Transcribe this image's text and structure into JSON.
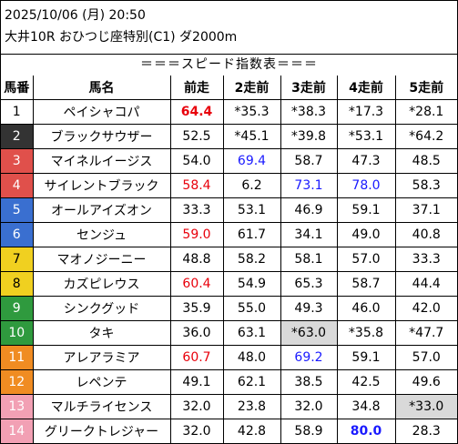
{
  "header": {
    "datetime": "2025/10/06 (月) 20:50",
    "race": "大井10R おひつじ座特別(C1) ダ2000m",
    "section_title": "＝＝＝スピード指数表＝＝＝"
  },
  "columns": [
    "馬番",
    "馬名",
    "前走",
    "2走前",
    "3走前",
    "4走前",
    "5走前"
  ],
  "colors": {
    "red_text": "#e8000b",
    "blue_text": "#1a1aff",
    "highlight_bg": "#d9d9d9",
    "frame_colors": [
      "#ffffff",
      "#333333",
      "#e0504b",
      "#3a6fd0",
      "#f0d020",
      "#2f9a3e",
      "#f08c22",
      "#f2a0b4"
    ]
  },
  "rows": [
    {
      "num": "1",
      "frame": "#ffffff",
      "numClass": "c1",
      "name": "ペイシャコパ",
      "vals": [
        "64.4",
        "*35.3",
        "*38.3",
        "*17.3",
        "*28.1"
      ],
      "styles": [
        "red bold",
        "",
        "",
        "",
        ""
      ]
    },
    {
      "num": "2",
      "frame": "#333333",
      "numClass": "",
      "name": "ブラックサウザー",
      "vals": [
        "52.5",
        "*45.1",
        "*39.8",
        "*53.1",
        "*64.2"
      ],
      "styles": [
        "",
        "",
        "",
        "",
        ""
      ]
    },
    {
      "num": "3",
      "frame": "#e0504b",
      "numClass": "",
      "name": "マイネルイージス",
      "vals": [
        "54.0",
        "69.4",
        "58.7",
        "47.3",
        "48.5"
      ],
      "styles": [
        "",
        "blue",
        "",
        "",
        ""
      ]
    },
    {
      "num": "4",
      "frame": "#e0504b",
      "numClass": "",
      "name": "サイレントブラック",
      "vals": [
        "58.4",
        "6.2",
        "73.1",
        "78.0",
        "58.3"
      ],
      "styles": [
        "red",
        "",
        "blue",
        "blue",
        ""
      ]
    },
    {
      "num": "5",
      "frame": "#3a6fd0",
      "numClass": "",
      "name": "オールアイズオン",
      "vals": [
        "33.3",
        "53.1",
        "46.9",
        "59.1",
        "37.1"
      ],
      "styles": [
        "",
        "",
        "",
        "",
        ""
      ]
    },
    {
      "num": "6",
      "frame": "#3a6fd0",
      "numClass": "",
      "name": "センジュ",
      "vals": [
        "59.0",
        "61.7",
        "34.1",
        "49.0",
        "40.8"
      ],
      "styles": [
        "red",
        "",
        "",
        "",
        ""
      ]
    },
    {
      "num": "7",
      "frame": "#f0d020",
      "numClass": "c3",
      "name": "マオノジーニー",
      "vals": [
        "48.8",
        "58.2",
        "58.1",
        "57.0",
        "33.3"
      ],
      "styles": [
        "",
        "",
        "",
        "",
        ""
      ]
    },
    {
      "num": "8",
      "frame": "#f0d020",
      "numClass": "c3",
      "name": "カズピレウス",
      "vals": [
        "60.4",
        "54.9",
        "65.3",
        "58.7",
        "44.4"
      ],
      "styles": [
        "red",
        "",
        "",
        "",
        ""
      ]
    },
    {
      "num": "9",
      "frame": "#2f9a3e",
      "numClass": "",
      "name": "シンクグッド",
      "vals": [
        "35.9",
        "55.0",
        "49.3",
        "46.0",
        "42.0"
      ],
      "styles": [
        "",
        "",
        "",
        "",
        ""
      ]
    },
    {
      "num": "10",
      "frame": "#2f9a3e",
      "numClass": "",
      "name": "タキ",
      "vals": [
        "36.0",
        "63.1",
        "*63.0",
        "*35.8",
        "*47.7"
      ],
      "styles": [
        "",
        "",
        "gray",
        "",
        ""
      ]
    },
    {
      "num": "11",
      "frame": "#f08c22",
      "numClass": "",
      "name": "アレアラミア",
      "vals": [
        "60.7",
        "48.0",
        "69.2",
        "59.1",
        "57.0"
      ],
      "styles": [
        "red",
        "",
        "blue",
        "",
        ""
      ]
    },
    {
      "num": "12",
      "frame": "#f08c22",
      "numClass": "",
      "name": "レペンテ",
      "vals": [
        "49.1",
        "62.1",
        "38.5",
        "42.5",
        "49.6"
      ],
      "styles": [
        "",
        "",
        "",
        "",
        ""
      ]
    },
    {
      "num": "13",
      "frame": "#f2a0b4",
      "numClass": "",
      "name": "マルチライセンス",
      "vals": [
        "32.0",
        "23.8",
        "32.0",
        "34.8",
        "*33.0"
      ],
      "styles": [
        "",
        "",
        "",
        "",
        "gray"
      ]
    },
    {
      "num": "14",
      "frame": "#f2a0b4",
      "numClass": "",
      "name": "グリークトレジャー",
      "vals": [
        "32.0",
        "42.8",
        "58.9",
        "80.0",
        "28.3"
      ],
      "styles": [
        "",
        "",
        "",
        "blue bold",
        ""
      ]
    }
  ]
}
